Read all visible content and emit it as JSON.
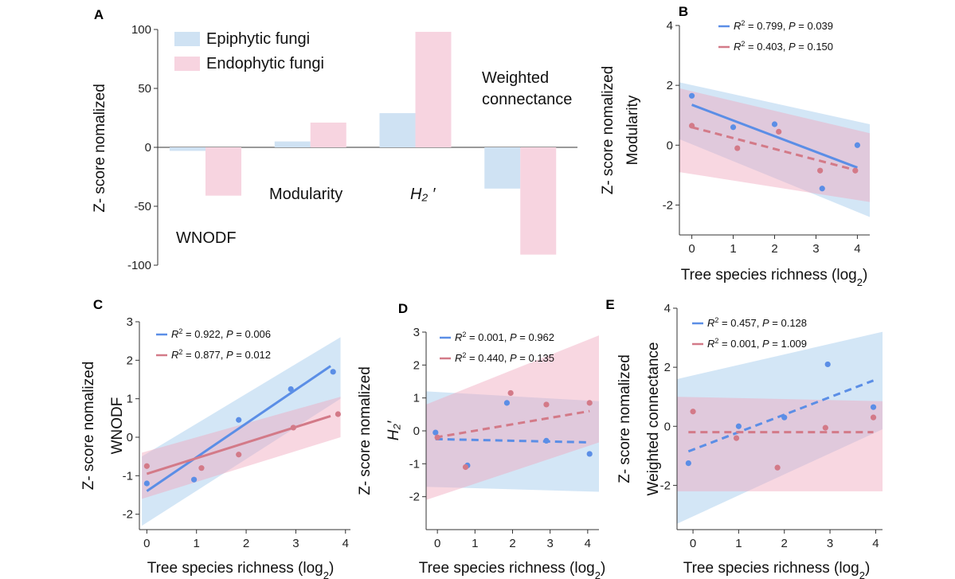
{
  "colors": {
    "epiphytic": "#5b8ee6",
    "endophytic": "#d37a88",
    "epiphytic_fill": "#cfe2f3",
    "endophytic_fill": "#f7d4e0",
    "epiphytic_band": "#9dc8ec",
    "endophytic_band": "#efa6bd"
  },
  "chart_data": [
    {
      "panel": "A",
      "type": "bar",
      "ylabel": "Z- score nomalized",
      "ylim": [
        -100,
        100
      ],
      "yticks": [
        100,
        50,
        0,
        -50,
        -100
      ],
      "categories": [
        "WNODF",
        "Modularity",
        "H₂′",
        "Weighted connectance"
      ],
      "category_label_lines": [
        [
          "WNODF"
        ],
        [
          "Modularity"
        ],
        [
          "H₂ ′"
        ],
        [
          "Weighted",
          "connectance"
        ]
      ],
      "series": [
        {
          "name": "Epiphytic fungi",
          "values": [
            -3,
            5,
            29,
            -35
          ]
        },
        {
          "name": "Endophytic fungi",
          "values": [
            -41,
            21,
            98,
            -91
          ]
        }
      ],
      "legend_position": "top-left"
    },
    {
      "panel": "B",
      "type": "scatter",
      "xlabel": "Tree species richness (log",
      "xlabel_sub": "2",
      "ylabel_lines": [
        "Z- score nomalized",
        "Modularity"
      ],
      "xlim": [
        -0.3,
        4.3
      ],
      "ylim": [
        -3,
        4
      ],
      "xticks": [
        0,
        1,
        2,
        3,
        4
      ],
      "yticks": [
        4,
        2,
        0,
        -2
      ],
      "series": [
        {
          "points": [
            [
              0,
              1.65
            ],
            [
              1,
              0.6
            ],
            [
              2,
              0.7
            ],
            [
              3.15,
              -1.45
            ],
            [
              4,
              0
            ]
          ],
          "fit": {
            "x": [
              0,
              4
            ],
            "y": [
              1.35,
              -0.75
            ]
          },
          "band": {
            "x": [
              -0.3,
              4.3
            ],
            "upper": [
              2.1,
              0.7
            ],
            "lower": [
              0.2,
              -2.4
            ]
          },
          "stats": {
            "r2": "0.799",
            "p": "0.039"
          },
          "dashed": false
        },
        {
          "points": [
            [
              0,
              0.65
            ],
            [
              1.1,
              -0.1
            ],
            [
              2.1,
              0.45
            ],
            [
              3.1,
              -0.85
            ],
            [
              3.95,
              -0.85
            ]
          ],
          "fit": {
            "x": [
              0,
              4
            ],
            "y": [
              0.6,
              -0.85
            ]
          },
          "band": {
            "x": [
              -0.3,
              4.3
            ],
            "upper": [
              1.9,
              0.4
            ],
            "lower": [
              -0.9,
              -1.9
            ]
          },
          "stats": {
            "r2": "0.403",
            "p": "0.150"
          },
          "dashed": true
        }
      ]
    },
    {
      "panel": "C",
      "type": "scatter",
      "xlabel": "Tree species richness (log",
      "xlabel_sub": "2",
      "ylabel_lines": [
        "Z- score nomalized",
        "WNODF"
      ],
      "xlim": [
        -0.15,
        4.1
      ],
      "ylim": [
        -2.4,
        3
      ],
      "xticks": [
        0,
        1,
        2,
        3,
        4
      ],
      "yticks": [
        3,
        2,
        1,
        0,
        -1,
        -2
      ],
      "series": [
        {
          "points": [
            [
              0,
              -1.2
            ],
            [
              0.95,
              -1.1
            ],
            [
              1.85,
              0.45
            ],
            [
              2.9,
              1.25
            ],
            [
              3.75,
              1.7
            ]
          ],
          "fit": {
            "x": [
              0,
              3.7
            ],
            "y": [
              -1.4,
              1.85
            ]
          },
          "band": {
            "x": [
              -0.1,
              3.9
            ],
            "upper": [
              -0.5,
              2.6
            ],
            "lower": [
              -2.3,
              1.0
            ]
          },
          "stats": {
            "r2": "0.922",
            "p": "0.006"
          },
          "dashed": false
        },
        {
          "points": [
            [
              0,
              -0.75
            ],
            [
              1.1,
              -0.8
            ],
            [
              1.85,
              -0.45
            ],
            [
              2.95,
              0.25
            ],
            [
              3.85,
              0.6
            ]
          ],
          "fit": {
            "x": [
              0,
              3.7
            ],
            "y": [
              -0.95,
              0.55
            ]
          },
          "band": {
            "x": [
              -0.1,
              3.9
            ],
            "upper": [
              -0.4,
              1.05
            ],
            "lower": [
              -1.6,
              0.0
            ]
          },
          "stats": {
            "r2": "0.877",
            "p": "0.012"
          },
          "dashed": false
        }
      ]
    },
    {
      "panel": "D",
      "type": "scatter",
      "xlabel": "Tree species richness (log",
      "xlabel_sub": "2",
      "ylabel_lines": [
        "Z- score nomalized",
        "H₂′"
      ],
      "xlim": [
        -0.3,
        4.3
      ],
      "ylim": [
        -3,
        3
      ],
      "xticks": [
        0,
        1,
        2,
        3,
        4
      ],
      "yticks": [
        3,
        2,
        1,
        0,
        -1,
        -2
      ],
      "series": [
        {
          "points": [
            [
              -0.05,
              -0.05
            ],
            [
              0.8,
              -1.05
            ],
            [
              1.85,
              0.85
            ],
            [
              2.9,
              -0.3
            ],
            [
              4.05,
              -0.7
            ]
          ],
          "fit": {
            "x": [
              -0.05,
              4.05
            ],
            "y": [
              -0.25,
              -0.35
            ]
          },
          "band": {
            "x": [
              -0.3,
              4.3
            ],
            "upper": [
              1.2,
              0.9
            ],
            "lower": [
              -1.7,
              -1.85
            ]
          },
          "stats": {
            "r2": "0.001",
            "p": "0.962"
          },
          "dashed": true
        },
        {
          "points": [
            [
              0,
              -0.2
            ],
            [
              0.75,
              -1.1
            ],
            [
              1.95,
              1.15
            ],
            [
              2.9,
              0.8
            ],
            [
              4.05,
              0.85
            ]
          ],
          "fit": {
            "x": [
              -0.05,
              4.05
            ],
            "y": [
              -0.2,
              0.6
            ]
          },
          "band": {
            "x": [
              -0.3,
              4.3
            ],
            "upper": [
              0.8,
              2.9
            ],
            "lower": [
              -2.1,
              -0.35
            ]
          },
          "stats": {
            "r2": "0.440",
            "p": "0.135"
          },
          "dashed": true
        }
      ]
    },
    {
      "panel": "E",
      "type": "scatter",
      "xlabel": "Tree species richness (log",
      "xlabel_sub": "2",
      "ylabel_lines": [
        "Z- score nomalized",
        "Weighted connectance"
      ],
      "xlim": [
        -0.35,
        4.15
      ],
      "ylim": [
        -3.5,
        4
      ],
      "xticks": [
        0,
        1,
        2,
        3,
        4
      ],
      "yticks": [
        4,
        2,
        0,
        -2
      ],
      "series": [
        {
          "points": [
            [
              -0.1,
              -1.25
            ],
            [
              1.0,
              0.0
            ],
            [
              2.0,
              0.3
            ],
            [
              2.95,
              2.1
            ],
            [
              3.95,
              0.65
            ]
          ],
          "fit": {
            "x": [
              -0.1,
              3.95
            ],
            "y": [
              -0.85,
              1.55
            ]
          },
          "band": {
            "x": [
              -0.35,
              4.15
            ],
            "upper": [
              1.6,
              3.2
            ],
            "lower": [
              -3.3,
              -0.1
            ]
          },
          "stats": {
            "r2": "0.457",
            "p": "0.128"
          },
          "dashed": true
        },
        {
          "points": [
            [
              0,
              0.5
            ],
            [
              0.95,
              -0.4
            ],
            [
              1.85,
              -1.4
            ],
            [
              2.9,
              -0.05
            ],
            [
              3.95,
              0.3
            ]
          ],
          "fit": {
            "x": [
              -0.1,
              3.95
            ],
            "y": [
              -0.2,
              -0.2
            ]
          },
          "band": {
            "x": [
              -0.35,
              4.15
            ],
            "upper": [
              1.0,
              0.85
            ],
            "lower": [
              -2.2,
              -2.2
            ]
          },
          "stats": {
            "r2": "0.001",
            "p": "1.009"
          },
          "dashed": true
        }
      ]
    }
  ]
}
